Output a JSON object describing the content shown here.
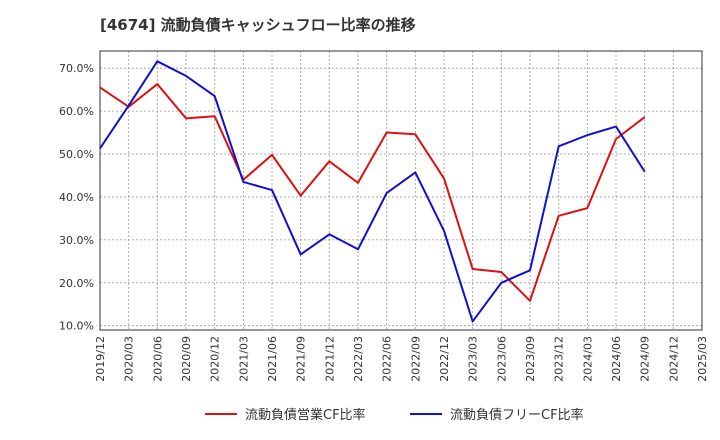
{
  "chart_data": {
    "type": "line",
    "title": "[4674]  流動負債キャッシュフロー比率の推移",
    "xlabel": "",
    "ylabel": "",
    "ylim": [
      9.0,
      74.0
    ],
    "yticks": [
      "10.0%",
      "20.0%",
      "30.0%",
      "40.0%",
      "50.0%",
      "60.0%",
      "70.0%"
    ],
    "ytick_values": [
      10,
      20,
      30,
      40,
      50,
      60,
      70
    ],
    "categories": [
      "2019/12",
      "2020/03",
      "2020/06",
      "2020/09",
      "2020/12",
      "2021/03",
      "2021/06",
      "2021/09",
      "2021/12",
      "2022/03",
      "2022/06",
      "2022/09",
      "2022/12",
      "2023/03",
      "2023/06",
      "2023/09",
      "2023/12",
      "2024/03",
      "2024/06",
      "2024/09",
      "2024/12",
      "2025/03"
    ],
    "grid": true,
    "legend_position": "bottom",
    "series": [
      {
        "name": "流動負債営業CF比率",
        "color": "#dd1111",
        "values": [
          65.5,
          61.0,
          66.3,
          58.3,
          58.8,
          44.0,
          49.8,
          40.3,
          48.3,
          43.3,
          55.0,
          54.6,
          44.3,
          23.2,
          22.5,
          15.8,
          35.6,
          37.4,
          53.5,
          58.6,
          null,
          null
        ]
      },
      {
        "name": "流動負債フリーCF比率",
        "color": "#1111cc",
        "values": [
          51.3,
          61.3,
          71.6,
          68.2,
          63.5,
          43.5,
          41.6,
          26.6,
          31.3,
          27.8,
          40.9,
          45.7,
          32.1,
          11.0,
          20.0,
          22.9,
          51.8,
          54.4,
          56.4,
          45.9,
          null,
          null
        ]
      }
    ]
  }
}
